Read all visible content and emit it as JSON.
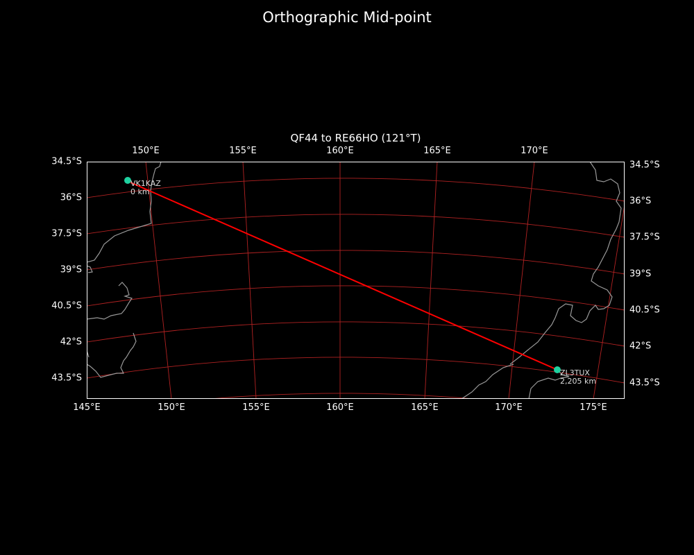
{
  "title": "Orthographic Mid-point",
  "subtitle": "QF44 to RE66HO (121°T)",
  "colors": {
    "background": "#000000",
    "grid": "#b22222",
    "path": "#ff0000",
    "marker": "#1fd1a0",
    "coast": "#999999",
    "frame": "#ffffff"
  },
  "axes": {
    "top_lon_ticks": [
      "150°E",
      "155°E",
      "160°E",
      "165°E",
      "170°E"
    ],
    "bottom_lon_ticks": [
      "145°E",
      "150°E",
      "155°E",
      "160°E",
      "165°E",
      "170°E",
      "175°E"
    ],
    "left_lat_ticks": [
      "34.5°S",
      "36°S",
      "37.5°S",
      "39°S",
      "40.5°S",
      "42°S",
      "43.5°S"
    ],
    "right_lat_ticks": [
      "34.5°S",
      "36°S",
      "37.5°S",
      "39°S",
      "40.5°S",
      "42°S",
      "43.5°S"
    ]
  },
  "stations": [
    {
      "call": "VK1KAZ",
      "distance": "0 km"
    },
    {
      "call": "ZL3TUX",
      "distance": "2,205 km"
    }
  ]
}
